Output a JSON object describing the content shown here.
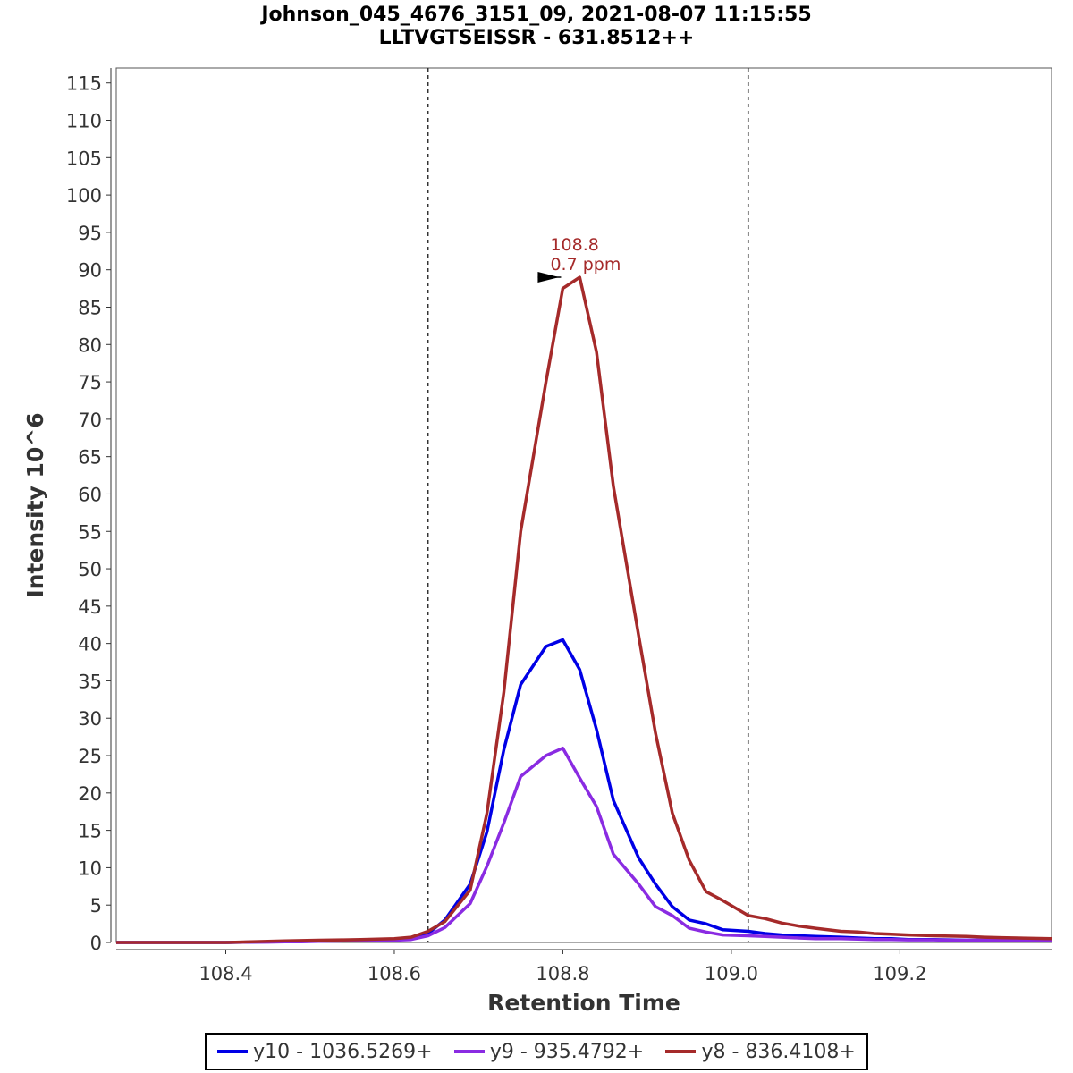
{
  "chart_data": {
    "type": "line",
    "title": "Johnson_045_4676_3151_09, 2021-08-07 11:15:55",
    "subtitle": "LLTVGTSEISSR - 631.8512++",
    "xlabel": "Retention Time",
    "ylabel": "Intensity 10^6",
    "xlim": [
      108.27,
      109.38
    ],
    "ylim": [
      0,
      117
    ],
    "x_ticks": [
      "108.4",
      "108.6",
      "108.8",
      "109.0",
      "109.2"
    ],
    "x_tick_values": [
      108.4,
      108.6,
      108.8,
      109.0,
      109.2
    ],
    "y_ticks": [
      0,
      5,
      10,
      15,
      20,
      25,
      30,
      35,
      40,
      45,
      50,
      55,
      60,
      65,
      70,
      75,
      80,
      85,
      90,
      95,
      100,
      105,
      110,
      115
    ],
    "grid": false,
    "legend_position": "bottom",
    "boundaries": [
      108.64,
      109.02
    ],
    "annotation": {
      "x": 108.8,
      "y": 89.0,
      "line1": "108.8",
      "line2": "0.7 ppm",
      "color": "#a52a2a"
    },
    "x": [
      108.27,
      108.29,
      108.31,
      108.34,
      108.36,
      108.38,
      108.4,
      108.43,
      108.45,
      108.47,
      108.49,
      108.51,
      108.54,
      108.56,
      108.58,
      108.6,
      108.62,
      108.64,
      108.66,
      108.69,
      108.71,
      108.73,
      108.75,
      108.78,
      108.8,
      108.82,
      108.84,
      108.86,
      108.89,
      108.91,
      108.93,
      108.95,
      108.97,
      108.99,
      109.02,
      109.04,
      109.06,
      109.08,
      109.1,
      109.13,
      109.15,
      109.17,
      109.19,
      109.21,
      109.24,
      109.26,
      109.28,
      109.3,
      109.32,
      109.34,
      109.38
    ],
    "series": [
      {
        "name": "y10 - 1036.5269+",
        "color": "#0000e6",
        "values": [
          0,
          0,
          0,
          0,
          0,
          0,
          0,
          0.05,
          0.1,
          0.1,
          0.15,
          0.2,
          0.25,
          0.3,
          0.3,
          0.35,
          0.5,
          1.2,
          3.0,
          7.8,
          14.8,
          25.8,
          34.5,
          39.6,
          40.5,
          36.5,
          28.5,
          19.0,
          11.3,
          7.8,
          4.8,
          3.0,
          2.5,
          1.7,
          1.5,
          1.2,
          1.0,
          0.9,
          0.8,
          0.7,
          0.6,
          0.5,
          0.5,
          0.4,
          0.4,
          0.35,
          0.3,
          0.3,
          0.3,
          0.25,
          0.25
        ]
      },
      {
        "name": "y9 - 935.4792+",
        "color": "#8a2be2",
        "values": [
          0,
          0,
          0,
          0,
          0,
          0,
          0,
          0.05,
          0.05,
          0.1,
          0.1,
          0.15,
          0.2,
          0.2,
          0.25,
          0.3,
          0.4,
          0.9,
          2.0,
          5.2,
          10.2,
          16.0,
          22.2,
          25.0,
          26.0,
          22.0,
          18.2,
          11.8,
          7.8,
          4.8,
          3.6,
          1.9,
          1.4,
          1.0,
          0.9,
          0.8,
          0.7,
          0.6,
          0.5,
          0.5,
          0.45,
          0.4,
          0.4,
          0.35,
          0.35,
          0.3,
          0.3,
          0.3,
          0.3,
          0.3,
          0.3
        ]
      },
      {
        "name": "y8 - 836.4108+",
        "color": "#a52a2a",
        "values": [
          0,
          0,
          0,
          0,
          0,
          0,
          0,
          0.1,
          0.15,
          0.2,
          0.25,
          0.3,
          0.35,
          0.4,
          0.45,
          0.5,
          0.7,
          1.5,
          2.8,
          7.0,
          17.3,
          33.5,
          55.0,
          75.0,
          87.5,
          89.0,
          79.0,
          61.0,
          41.0,
          28.0,
          17.3,
          11.0,
          6.8,
          5.6,
          3.6,
          3.2,
          2.6,
          2.2,
          1.9,
          1.5,
          1.4,
          1.2,
          1.1,
          1.0,
          0.9,
          0.85,
          0.8,
          0.7,
          0.65,
          0.6,
          0.5
        ]
      }
    ]
  }
}
